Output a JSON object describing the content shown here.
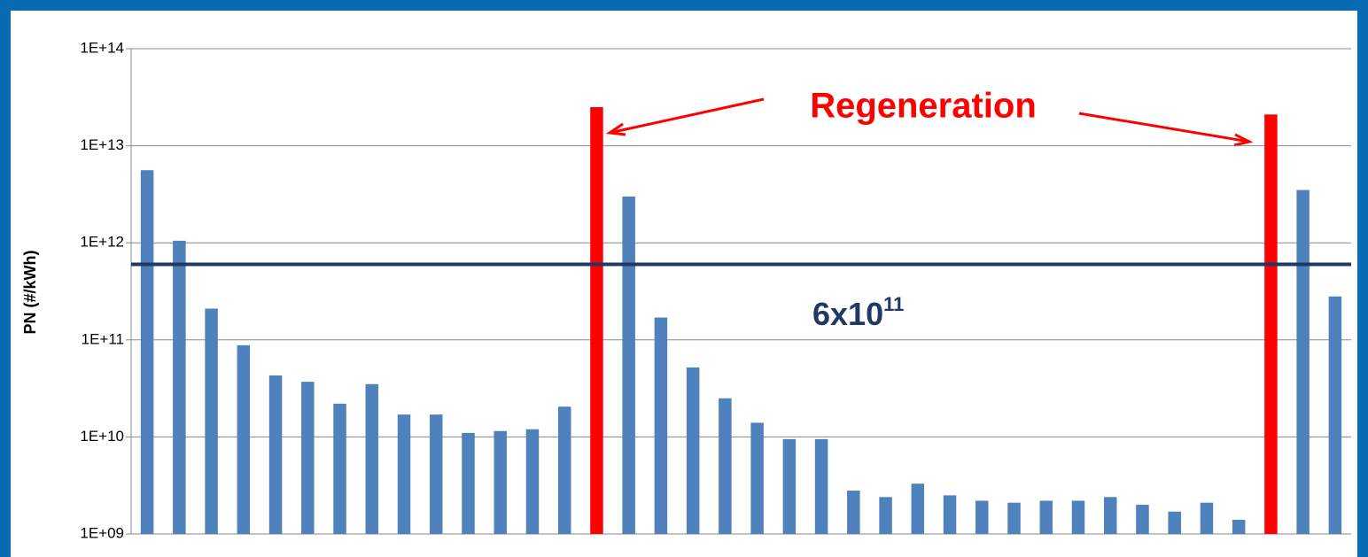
{
  "chart_data": {
    "type": "bar",
    "y_label": "PN (#/kWh)",
    "log_scale": true,
    "grid": true,
    "values": [
      5600000000000,
      1050000000000,
      210000000000,
      88000000000,
      43000000000,
      37000000000,
      22000000000,
      35000000000,
      17000000000,
      17000000000,
      11000000000,
      11500000000,
      12000000000,
      20500000000,
      25000000000000,
      3000000000000,
      170000000000,
      52000000000,
      25000000000,
      14000000000,
      9500000000,
      9500000000,
      2800000000,
      2400000000,
      3300000000,
      2500000000,
      2200000000,
      2100000000,
      2200000000,
      2200000000,
      2400000000,
      2000000000,
      1700000000,
      2100000000,
      1400000000,
      21000000000000,
      3500000000000,
      280000000000
    ],
    "colors": [
      "#4f81bd",
      "#4f81bd",
      "#4f81bd",
      "#4f81bd",
      "#4f81bd",
      "#4f81bd",
      "#4f81bd",
      "#4f81bd",
      "#4f81bd",
      "#4f81bd",
      "#4f81bd",
      "#4f81bd",
      "#4f81bd",
      "#4f81bd",
      "#ff0000",
      "#4f81bd",
      "#4f81bd",
      "#4f81bd",
      "#4f81bd",
      "#4f81bd",
      "#4f81bd",
      "#4f81bd",
      "#4f81bd",
      "#4f81bd",
      "#4f81bd",
      "#4f81bd",
      "#4f81bd",
      "#4f81bd",
      "#4f81bd",
      "#4f81bd",
      "#4f81bd",
      "#4f81bd",
      "#4f81bd",
      "#4f81bd",
      "#4f81bd",
      "#ff0000",
      "#4f81bd",
      "#4f81bd"
    ],
    "ylim": [
      1000000000,
      100000000000000
    ],
    "yticks": [
      {
        "value": 1000000000,
        "label": "1E+09"
      },
      {
        "value": 10000000000,
        "label": "1E+10"
      },
      {
        "value": 100000000000,
        "label": "1E+11"
      },
      {
        "value": 1000000000000,
        "label": "1E+12"
      },
      {
        "value": 10000000000000,
        "label": "1E+13"
      },
      {
        "value": 100000000000000,
        "label": "1E+14"
      }
    ],
    "reference_line": {
      "value": 600000000000,
      "label": "6x10",
      "label_exponent": "11",
      "color": "#1f3864"
    },
    "annotation": "Regeneration"
  }
}
